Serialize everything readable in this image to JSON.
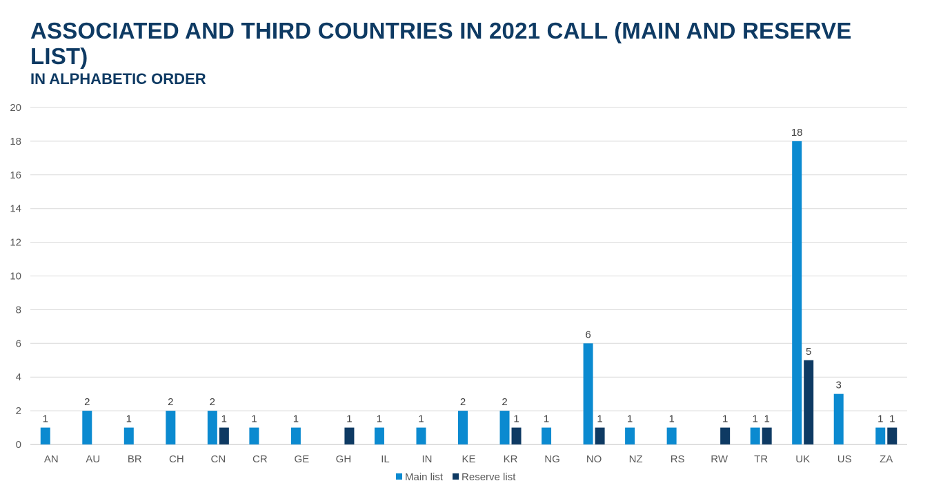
{
  "chart_data": {
    "type": "bar",
    "title": "ASSOCIATED AND THIRD COUNTRIES IN 2021 CALL (MAIN AND RESERVE LIST)",
    "subtitle": "IN ALPHABETIC ORDER",
    "categories": [
      "AN",
      "AU",
      "BR",
      "CH",
      "CN",
      "CR",
      "GE",
      "GH",
      "IL",
      "IN",
      "KE",
      "KR",
      "NG",
      "NO",
      "NZ",
      "RS",
      "RW",
      "TR",
      "UK",
      "US",
      "ZA"
    ],
    "series": [
      {
        "name": "Main list",
        "color": "#0b8ad0",
        "values": [
          1,
          2,
          1,
          2,
          2,
          1,
          1,
          null,
          1,
          1,
          2,
          2,
          1,
          6,
          1,
          1,
          null,
          1,
          18,
          3,
          1
        ]
      },
      {
        "name": "Reserve list",
        "color": "#0e3a63",
        "values": [
          null,
          null,
          null,
          null,
          1,
          null,
          null,
          1,
          null,
          null,
          null,
          1,
          null,
          1,
          null,
          null,
          1,
          1,
          5,
          null,
          1
        ]
      }
    ],
    "ylim": [
      0,
      20
    ],
    "yticks": [
      0,
      2,
      4,
      6,
      8,
      10,
      12,
      14,
      16,
      18,
      20
    ],
    "grid": true,
    "legend": "bottom"
  }
}
